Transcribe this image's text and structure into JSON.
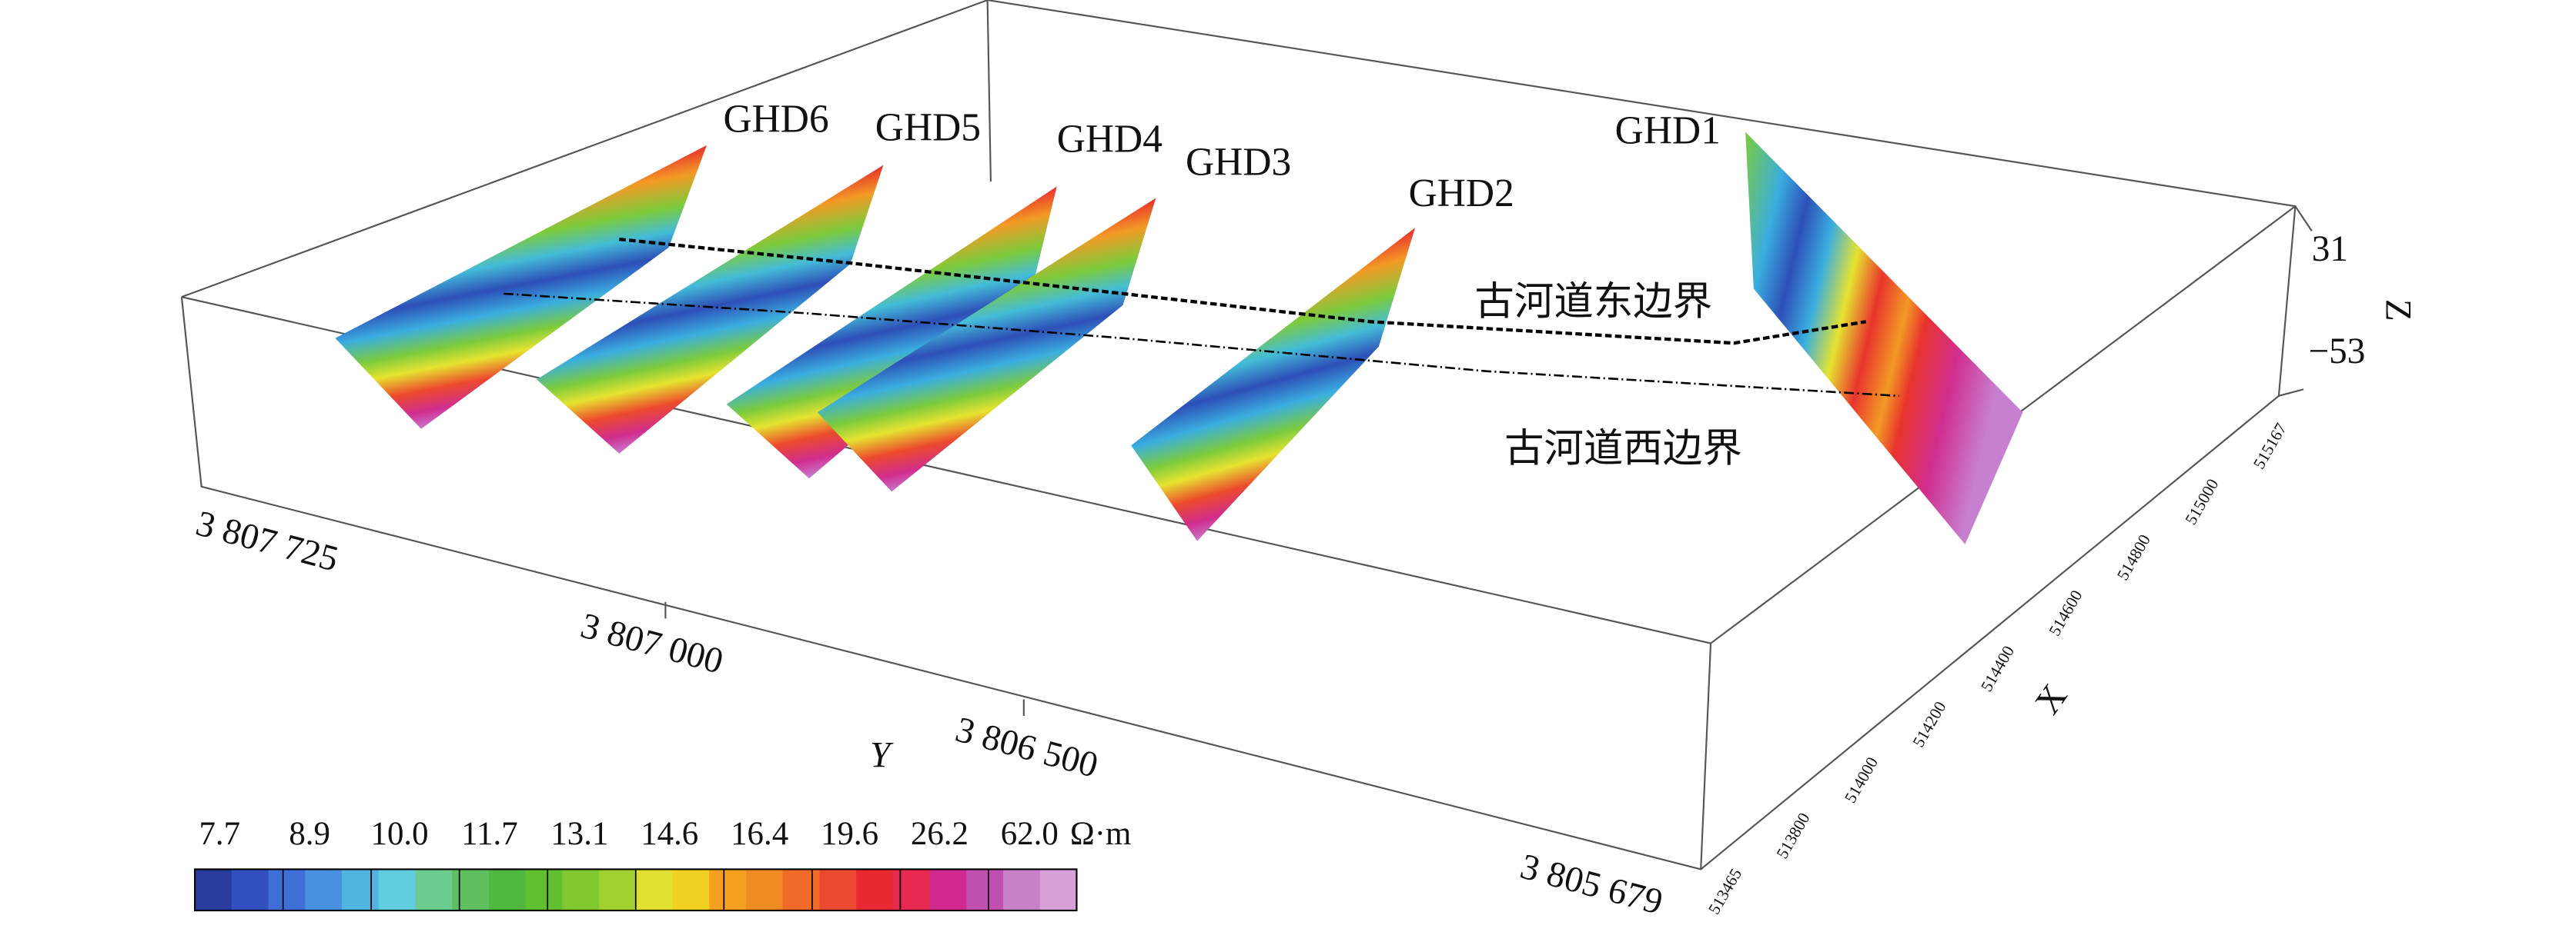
{
  "profiles": [
    "GHD6",
    "GHD5",
    "GHD4",
    "GHD3",
    "GHD2",
    "GHD1"
  ],
  "annotations": {
    "east_boundary": "古河道东边界",
    "west_boundary": "古河道西边界"
  },
  "axes": {
    "y": {
      "label": "Y",
      "ticks": [
        "3 807 725",
        "3 807 000",
        "3 806 500",
        "3 805 679"
      ]
    },
    "x": {
      "label": "X",
      "ticks": [
        "513465",
        "513800",
        "514000",
        "514200",
        "514400",
        "514600",
        "514800",
        "515000",
        "515167"
      ]
    },
    "z": {
      "label": "Z",
      "ticks": [
        "31",
        "−53"
      ]
    }
  },
  "colorbar": {
    "ticks": [
      "7.7",
      "8.9",
      "10.0",
      "11.7",
      "13.1",
      "14.6",
      "16.4",
      "19.6",
      "26.2",
      "62.0"
    ],
    "unit": "Ω·m"
  }
}
